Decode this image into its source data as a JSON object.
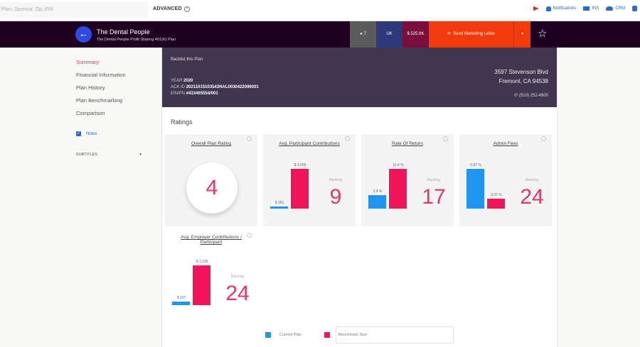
{
  "topbar": {
    "search_placeholder": "Plan, Sponsor, Zip, EIN",
    "advanced_label": "ADVANCED",
    "links": [
      {
        "icon": "flag-icon",
        "label": ""
      },
      {
        "icon": "bell-icon",
        "label": "Notifications"
      },
      {
        "icon": "mail-icon",
        "label": "INS"
      },
      {
        "icon": "cloud-icon",
        "label": "CRM"
      },
      {
        "icon": "thumbs-up-icon",
        "label": ""
      }
    ]
  },
  "header": {
    "plan_sponsor": "The Dental People",
    "plan_name": "The Dental People Profit Sharing 401(K) Plan",
    "badges": {
      "count": "7",
      "state": "UK",
      "assets": "$ 525.9K"
    },
    "send_label": "Send Marketing Letter",
    "colors": {
      "bg": "#200020",
      "send": "#f23a0c",
      "back": "#2d4be0"
    }
  },
  "sidebar": {
    "items": [
      {
        "label": "Summary",
        "active": true
      },
      {
        "label": "Financial Information",
        "active": false
      },
      {
        "label": "Plan History",
        "active": false
      },
      {
        "label": "Plan Benchmarking",
        "active": false
      },
      {
        "label": "Comparison",
        "active": false
      }
    ],
    "notes_label": "Notes",
    "subtitles_label": "SUBTITLES"
  },
  "banner": {
    "title": "Backlist this Plan",
    "year_label": "YEAR",
    "year": "2020",
    "ack_label": "ACK ID",
    "ack_id": "20211015103543NAL0030422096001",
    "ein_label": "EIN/PN",
    "ein": "#433465554/001",
    "address1": "3597 Stevenson Blvd",
    "address2": "Fremont, CA 94538",
    "phone": "(510) 252-4900"
  },
  "ratings": {
    "title": "Ratings",
    "rating_label": "Ranking",
    "overall": {
      "title": "Overall Plan Rating",
      "value": "4"
    },
    "cards": [
      {
        "title": "Avg. Participant Contributions",
        "current": 181,
        "benchmark": 3609,
        "current_label": "$ 181",
        "benchmark_label": "$ 3,609",
        "rating": "9"
      },
      {
        "title": "Rate Of Return",
        "current": 3.8,
        "benchmark": 11.4,
        "current_label": "3.8 %",
        "benchmark_label": "11.4 %",
        "rating": "17"
      },
      {
        "title": "Admin Fees",
        "current": 0.87,
        "benchmark": 0.22,
        "current_label": "0.87 %",
        "benchmark_label": "0.22 %",
        "rating": "24"
      },
      {
        "title": "Avg. Employer Contributions / Participant",
        "current": 107,
        "benchmark": 1235,
        "current_label": "$ 107",
        "benchmark_label": "$ 1,235",
        "rating": "24"
      }
    ],
    "legend": {
      "current": "Current Plan",
      "benchmark": "Benchmark Size"
    },
    "colors": {
      "current": "#1e95ee",
      "benchmark": "#f0145a",
      "rating": "#e23668"
    }
  }
}
